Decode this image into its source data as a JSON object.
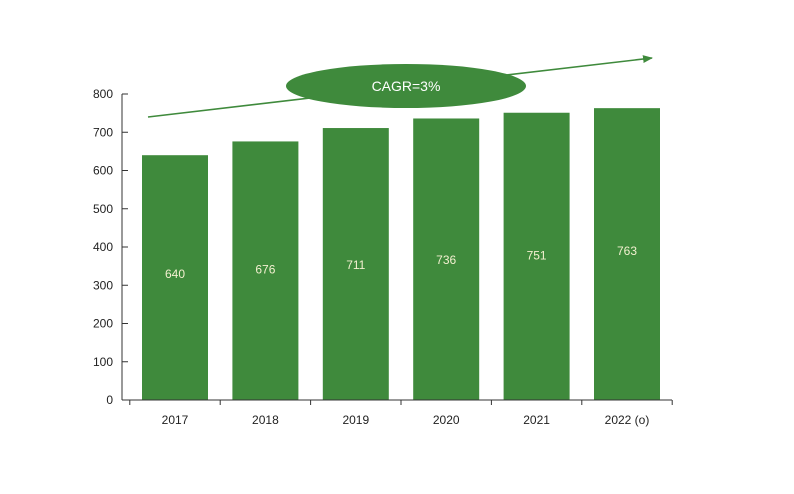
{
  "chart_data": {
    "type": "bar",
    "categories": [
      "2017",
      "2018",
      "2019",
      "2020",
      "2021",
      "2022 (o)"
    ],
    "values": [
      640,
      676,
      711,
      736,
      751,
      763
    ],
    "value_labels": [
      "640",
      "676",
      "711",
      "736",
      "751",
      "763"
    ],
    "title": "",
    "xlabel": "",
    "ylabel": "",
    "ylim": [
      0,
      800
    ],
    "yticks": [
      0,
      100,
      200,
      300,
      400,
      500,
      600,
      700,
      800
    ],
    "ytick_labels": [
      "0",
      "100",
      "200",
      "300",
      "400",
      "500",
      "600",
      "700",
      "800"
    ],
    "grid": false,
    "legend": "none",
    "annotation": {
      "text": "CAGR=3%",
      "shape": "ellipse on upward trend arrow"
    },
    "colors": {
      "bar": "#3f8a3c",
      "annotation": "#3f8a3c",
      "value_text": "#f3f0d0",
      "axis": "#333333"
    }
  }
}
